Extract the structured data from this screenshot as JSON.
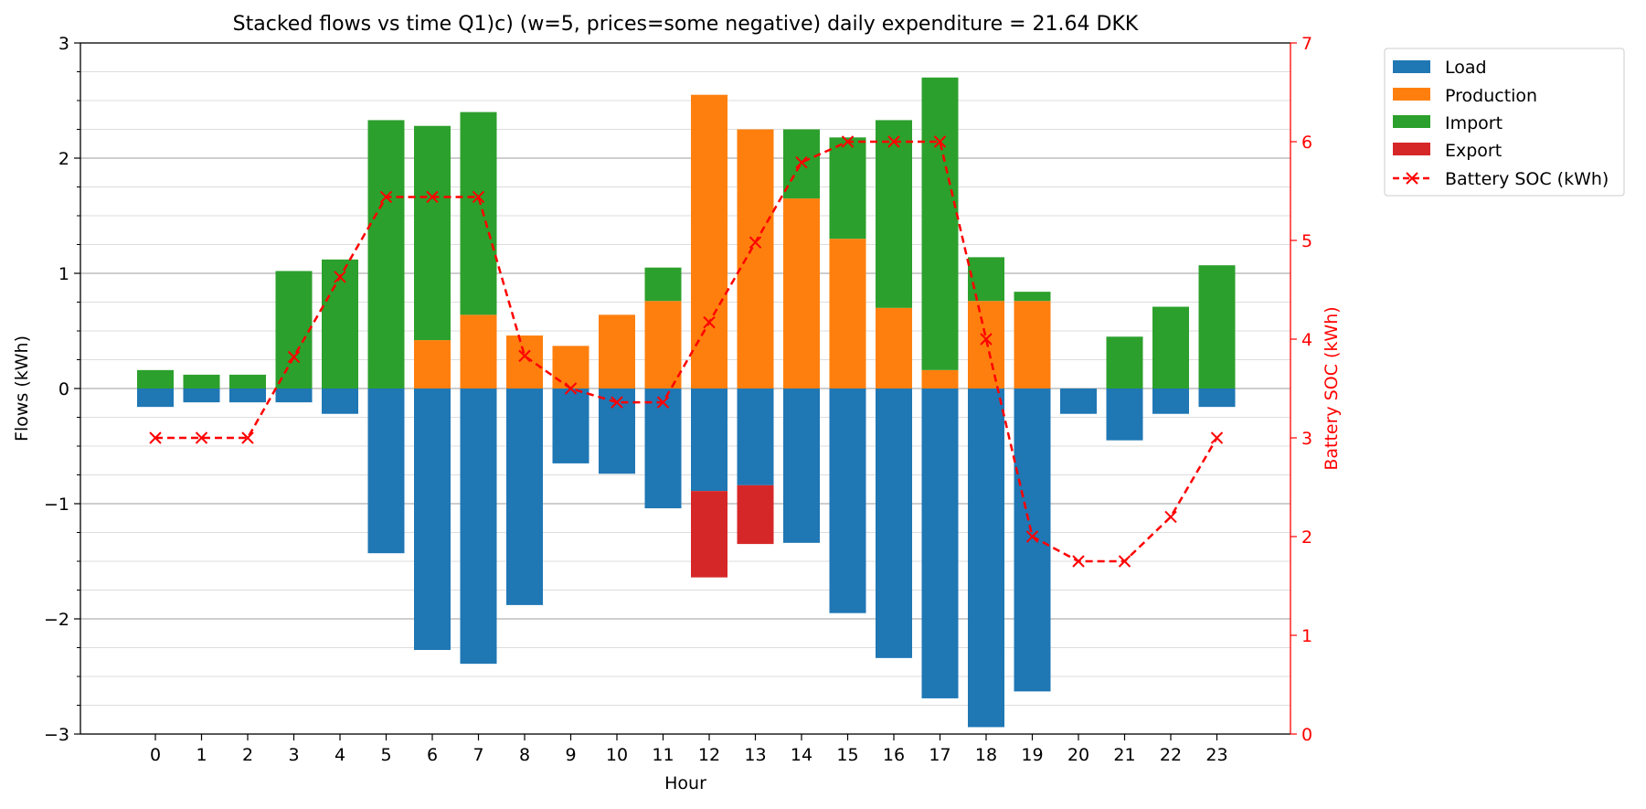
{
  "chart_data": {
    "type": "bar",
    "title": "Stacked flows vs time Q1)c) (w=5, prices=some negative) daily expenditure = 21.64 DKK",
    "xlabel": "Hour",
    "ylabel": "Flows (kWh)",
    "y2label": "Battery SOC (kWh)",
    "categories": [
      "0",
      "1",
      "2",
      "3",
      "4",
      "5",
      "6",
      "7",
      "8",
      "9",
      "10",
      "11",
      "12",
      "13",
      "14",
      "15",
      "16",
      "17",
      "18",
      "19",
      "20",
      "21",
      "22",
      "23"
    ],
    "ylim": [
      -3,
      3
    ],
    "y_ticks": [
      -3,
      -2,
      -1,
      0,
      1,
      2,
      3
    ],
    "y_tick_labels": [
      "−3",
      "−2",
      "−1",
      "0",
      "1",
      "2",
      "3"
    ],
    "y2lim": [
      0,
      7
    ],
    "y2_ticks": [
      0,
      1,
      2,
      3,
      4,
      5,
      6,
      7
    ],
    "y2_tick_labels": [
      "0",
      "1",
      "2",
      "3",
      "4",
      "5",
      "6",
      "7"
    ],
    "grid": "horizontal major and minor lines",
    "legend_position": "outside top-right",
    "series": [
      {
        "name": "Load",
        "kind": "bar",
        "axis": "left",
        "color": "#1f77b4",
        "values": [
          -0.16,
          -0.12,
          -0.12,
          -0.12,
          -0.22,
          -1.43,
          -2.27,
          -2.39,
          -1.88,
          -0.65,
          -0.74,
          -1.04,
          -0.89,
          -0.84,
          -1.34,
          -1.95,
          -2.34,
          -2.69,
          -2.94,
          -2.63,
          -0.22,
          -0.45,
          -0.22,
          -0.16
        ]
      },
      {
        "name": "Production",
        "kind": "bar",
        "axis": "left",
        "color": "#ff7f0e",
        "values": [
          0,
          0,
          0,
          0,
          0,
          0,
          0.42,
          0.64,
          0.46,
          0.37,
          0.64,
          0.76,
          2.55,
          2.25,
          1.65,
          1.3,
          0.7,
          0.16,
          0.76,
          0.76,
          0,
          0,
          0,
          0
        ]
      },
      {
        "name": "Import",
        "kind": "bar",
        "axis": "left",
        "color": "#2ca02c",
        "values": [
          0.16,
          0.12,
          0.12,
          1.02,
          1.12,
          2.33,
          1.86,
          1.76,
          0,
          0,
          0,
          0.29,
          0,
          0,
          0.6,
          0.88,
          1.63,
          2.54,
          0.38,
          0.08,
          0,
          0.45,
          0.71,
          1.07
        ]
      },
      {
        "name": "Export",
        "kind": "bar",
        "axis": "left",
        "color": "#d62728",
        "values": [
          0,
          0,
          0,
          0,
          0,
          0,
          0,
          0,
          0,
          0,
          0,
          0,
          -0.75,
          -0.51,
          0,
          0,
          0,
          0,
          0,
          0,
          0,
          0,
          0,
          0
        ]
      },
      {
        "name": "Battery SOC (kWh)",
        "kind": "line",
        "axis": "right",
        "color": "#ff0000",
        "marker": "x",
        "linestyle": "dashed",
        "values": [
          3.0,
          3.0,
          3.0,
          3.82,
          4.63,
          5.44,
          5.44,
          5.44,
          3.83,
          3.5,
          3.36,
          3.36,
          4.17,
          4.98,
          5.79,
          6.0,
          6.0,
          6.0,
          4.0,
          2.0,
          1.75,
          1.75,
          2.2,
          3.0
        ]
      }
    ]
  }
}
